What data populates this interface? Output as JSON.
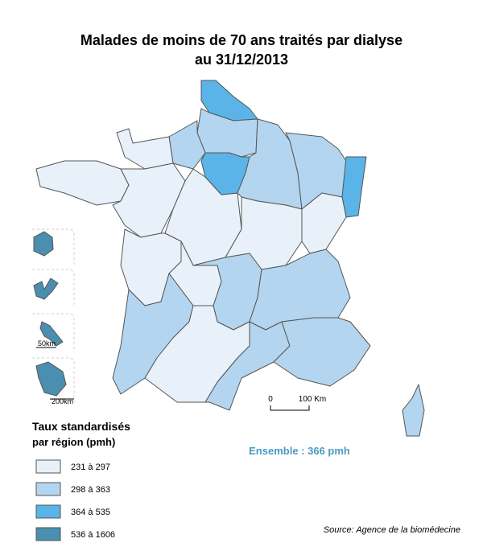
{
  "title": {
    "line1": "Malades de moins de 70 ans traités par dialyse",
    "line2": "au 31/12/2013"
  },
  "legend": {
    "title_line1": "Taux standardisés",
    "title_line2": "par région (pmh)",
    "items": [
      {
        "label": "231 à 297",
        "color": "#e8f1fa"
      },
      {
        "label": "298 à 363",
        "color": "#b3d5ef"
      },
      {
        "label": "364 à 535",
        "color": "#5ab4e8"
      },
      {
        "label": "536 à 1606",
        "color": "#4a8fb0"
      }
    ]
  },
  "scale_bar": {
    "start": "0",
    "end": "100 Km"
  },
  "insets": {
    "scale_1": "50km",
    "scale_2": "200km"
  },
  "summary": "Ensemble : 366 pmh",
  "source": "Source: Agence de la biomédecine"
}
